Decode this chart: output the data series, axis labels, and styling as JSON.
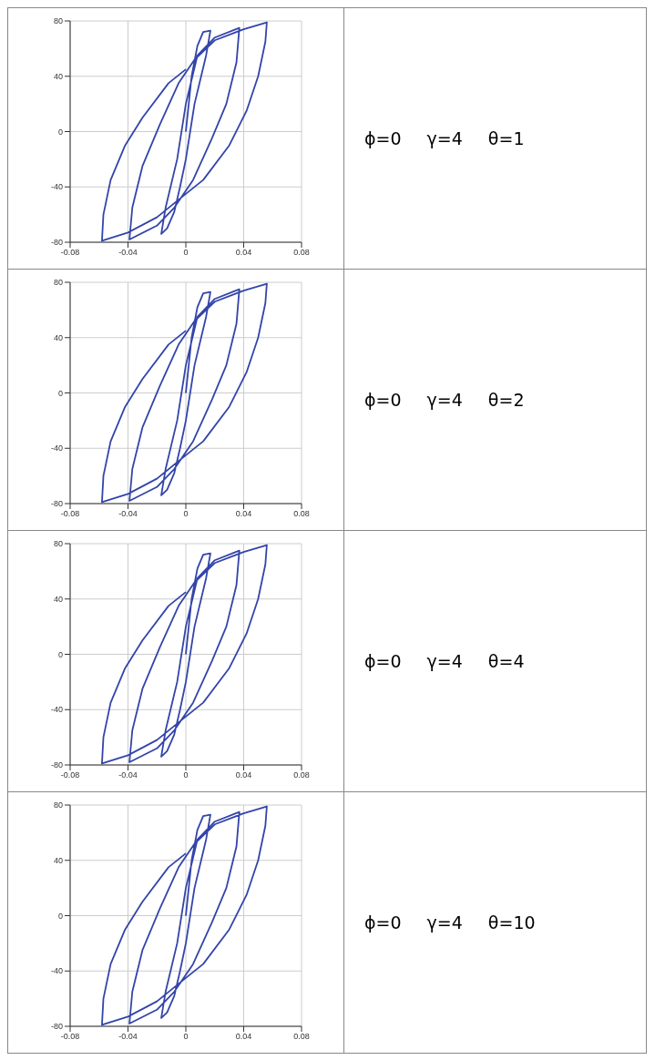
{
  "chart_data": [
    {
      "type": "line",
      "annotations": [
        "ϕ=0 γ=4 θ=1"
      ],
      "xlim": [
        -0.08,
        0.08
      ],
      "xticks": [
        -0.08,
        -0.04,
        0,
        0.04,
        0.08
      ],
      "ylim": [
        -80,
        80
      ],
      "yticks": [
        -80,
        -40,
        0,
        40,
        80
      ],
      "grid": true,
      "marker": "none",
      "series": [
        {
          "color": "#3344aa",
          "x": [
            0,
            0.004,
            0.008,
            0.012,
            0.017,
            0.014,
            0.006,
            0,
            -0.004,
            -0.008,
            -0.013,
            -0.017,
            -0.014,
            -0.006,
            0,
            0.008,
            0.02,
            0.037,
            0.035,
            0.028,
            0.018,
            0.005,
            -0.008,
            -0.02,
            -0.039,
            -0.037,
            -0.03,
            -0.018,
            -0.005,
            0.006,
            0.02,
            0.04,
            0.056,
            0.055,
            0.05,
            0.042,
            0.03,
            0.012,
            0,
            -0.02,
            -0.04,
            -0.058,
            -0.057,
            -0.052,
            -0.042,
            -0.03,
            -0.012,
            0
          ],
          "values": [
            0,
            40,
            62,
            72,
            73,
            55,
            20,
            -20,
            -40,
            -58,
            -70,
            -74,
            -55,
            -20,
            20,
            55,
            68,
            75,
            50,
            20,
            -5,
            -35,
            -55,
            -68,
            -78,
            -55,
            -25,
            5,
            35,
            52,
            66,
            74,
            79,
            65,
            40,
            15,
            -10,
            -35,
            -45,
            -62,
            -73,
            -79,
            -60,
            -35,
            -10,
            10,
            35,
            45
          ]
        }
      ]
    },
    {
      "type": "line",
      "annotations": [
        "ϕ=0 γ=4 θ=2"
      ],
      "xlim": [
        -0.08,
        0.08
      ],
      "xticks": [
        -0.08,
        -0.04,
        0,
        0.04,
        0.08
      ],
      "ylim": [
        -80,
        80
      ],
      "yticks": [
        -80,
        -40,
        0,
        40,
        80
      ],
      "grid": true,
      "marker": "none",
      "series": [
        {
          "color": "#3344aa",
          "x": [
            0,
            0.004,
            0.008,
            0.012,
            0.017,
            0.014,
            0.006,
            0,
            -0.004,
            -0.008,
            -0.013,
            -0.017,
            -0.014,
            -0.006,
            0,
            0.008,
            0.02,
            0.037,
            0.035,
            0.028,
            0.018,
            0.005,
            -0.008,
            -0.02,
            -0.039,
            -0.037,
            -0.03,
            -0.018,
            -0.005,
            0.006,
            0.02,
            0.04,
            0.056,
            0.055,
            0.05,
            0.042,
            0.03,
            0.012,
            0,
            -0.02,
            -0.04,
            -0.058,
            -0.057,
            -0.052,
            -0.042,
            -0.03,
            -0.012,
            0
          ],
          "values": [
            0,
            40,
            62,
            72,
            73,
            55,
            20,
            -20,
            -40,
            -58,
            -70,
            -74,
            -55,
            -20,
            20,
            55,
            68,
            75,
            50,
            20,
            -5,
            -35,
            -55,
            -68,
            -78,
            -55,
            -25,
            5,
            35,
            52,
            66,
            74,
            79,
            65,
            40,
            15,
            -10,
            -35,
            -45,
            -62,
            -73,
            -79,
            -60,
            -35,
            -10,
            10,
            35,
            45
          ]
        }
      ]
    },
    {
      "type": "line",
      "annotations": [
        "ϕ=0 γ=4 θ=4"
      ],
      "xlim": [
        -0.08,
        0.08
      ],
      "xticks": [
        -0.08,
        -0.04,
        0,
        0.04,
        0.08
      ],
      "ylim": [
        -80,
        80
      ],
      "yticks": [
        -80,
        -40,
        0,
        40,
        80
      ],
      "grid": true,
      "marker": "none",
      "series": [
        {
          "color": "#3344aa",
          "x": [
            0,
            0.004,
            0.008,
            0.012,
            0.017,
            0.014,
            0.006,
            0,
            -0.004,
            -0.008,
            -0.013,
            -0.017,
            -0.014,
            -0.006,
            0,
            0.008,
            0.02,
            0.037,
            0.035,
            0.028,
            0.018,
            0.005,
            -0.008,
            -0.02,
            -0.039,
            -0.037,
            -0.03,
            -0.018,
            -0.005,
            0.006,
            0.02,
            0.04,
            0.056,
            0.055,
            0.05,
            0.042,
            0.03,
            0.012,
            0,
            -0.02,
            -0.04,
            -0.058,
            -0.057,
            -0.052,
            -0.042,
            -0.03,
            -0.012,
            0
          ],
          "values": [
            0,
            40,
            62,
            72,
            73,
            55,
            20,
            -20,
            -40,
            -58,
            -70,
            -74,
            -55,
            -20,
            20,
            55,
            68,
            75,
            50,
            20,
            -5,
            -35,
            -55,
            -68,
            -78,
            -55,
            -25,
            5,
            35,
            52,
            66,
            74,
            79,
            65,
            40,
            15,
            -10,
            -35,
            -45,
            -62,
            -73,
            -79,
            -60,
            -35,
            -10,
            10,
            35,
            45
          ]
        }
      ]
    },
    {
      "type": "line",
      "annotations": [
        "ϕ=0 γ=4 θ=10"
      ],
      "xlim": [
        -0.08,
        0.08
      ],
      "xticks": [
        -0.08,
        -0.04,
        0,
        0.04,
        0.08
      ],
      "ylim": [
        -80,
        80
      ],
      "yticks": [
        -80,
        -40,
        0,
        40,
        80
      ],
      "grid": true,
      "marker": "none",
      "series": [
        {
          "color": "#3344aa",
          "x": [
            0,
            0.004,
            0.008,
            0.012,
            0.017,
            0.014,
            0.006,
            0,
            -0.004,
            -0.008,
            -0.013,
            -0.017,
            -0.014,
            -0.006,
            0,
            0.008,
            0.02,
            0.037,
            0.035,
            0.028,
            0.018,
            0.005,
            -0.008,
            -0.02,
            -0.039,
            -0.037,
            -0.03,
            -0.018,
            -0.005,
            0.006,
            0.02,
            0.04,
            0.056,
            0.055,
            0.05,
            0.042,
            0.03,
            0.012,
            0,
            -0.02,
            -0.04,
            -0.058,
            -0.057,
            -0.052,
            -0.042,
            -0.03,
            -0.012,
            0
          ],
          "values": [
            0,
            40,
            62,
            72,
            73,
            55,
            20,
            -20,
            -40,
            -58,
            -70,
            -74,
            -55,
            -20,
            20,
            55,
            68,
            75,
            50,
            20,
            -5,
            -35,
            -55,
            -68,
            -78,
            -55,
            -25,
            5,
            35,
            52,
            66,
            74,
            79,
            65,
            40,
            15,
            -10,
            -35,
            -45,
            -62,
            -73,
            -79,
            -60,
            -35,
            -10,
            10,
            35,
            45
          ]
        }
      ]
    }
  ]
}
